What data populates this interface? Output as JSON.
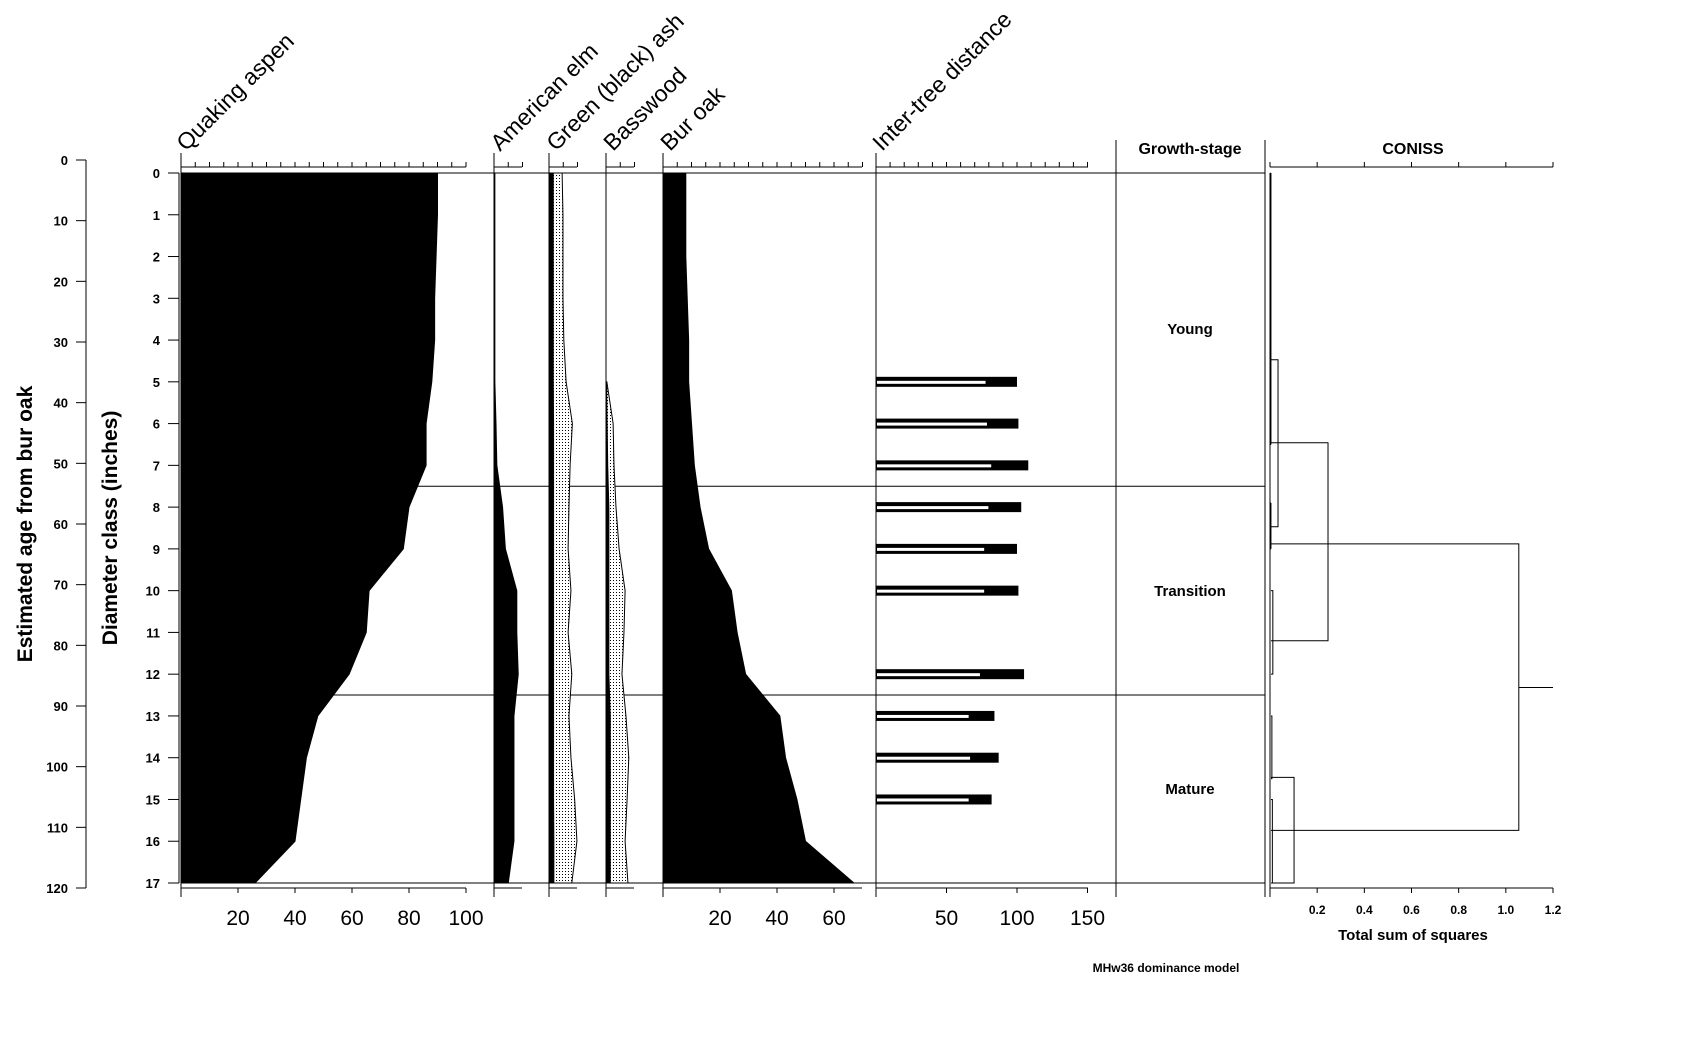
{
  "chart_data": {
    "type": "area",
    "y_axes": {
      "age": {
        "label": "Estimated age from bur oak",
        "ticks": [
          0,
          10,
          20,
          30,
          40,
          50,
          60,
          70,
          80,
          90,
          100,
          110,
          120
        ],
        "range": [
          0,
          120
        ]
      },
      "diameter": {
        "label": "Diameter class (inches)",
        "ticks": [
          0,
          1,
          2,
          3,
          4,
          5,
          6,
          7,
          8,
          9,
          10,
          11,
          12,
          13,
          14,
          15,
          16,
          17
        ],
        "range": [
          0,
          17
        ]
      }
    },
    "panels": [
      {
        "id": "aspen",
        "title": "Quaking aspen",
        "xlim": [
          0,
          100
        ],
        "bottom_ticks": [
          20,
          40,
          60,
          80,
          100
        ],
        "series": [
          {
            "style": "solid",
            "values": [
              90,
              90,
              89.5,
              89,
              89,
              88,
              86,
              86,
              80,
              78,
              66,
              65,
              59,
              48,
              44,
              42,
              40,
              26
            ]
          }
        ]
      },
      {
        "id": "elm",
        "title": "American elm",
        "xlim": [
          0,
          10
        ],
        "bottom_ticks": [],
        "series": [
          {
            "style": "solid",
            "values": [
              0.3,
              0.3,
              0.3,
              0.3,
              0.3,
              0.3,
              0.7,
              1,
              3,
              4,
              8,
              8,
              8.5,
              7,
              7,
              7,
              7,
              5
            ]
          }
        ]
      },
      {
        "id": "ash",
        "title": "Green (black) ash",
        "xlim": [
          0,
          10
        ],
        "bottom_ticks": [],
        "series": [
          {
            "style": "stipple",
            "values": [
              4.6,
              4.9,
              4.9,
              4.9,
              5.2,
              6,
              8.2,
              7.4,
              7,
              6.7,
              7.7,
              6.7,
              8,
              7,
              7.7,
              9,
              9.8,
              8
            ]
          },
          {
            "style": "solid",
            "values": [
              1.5,
              1.5,
              1.5,
              1.5,
              1.5,
              1.5,
              1.6,
              1.6,
              1.6,
              1.6,
              1.6,
              1.6,
              1.6,
              1.6,
              1.6,
              1.6,
              1.7,
              1.7
            ]
          }
        ]
      },
      {
        "id": "basswood",
        "title": "Basswood",
        "xlim": [
          0,
          10
        ],
        "bottom_ticks": [],
        "series": [
          {
            "style": "stipple",
            "values": [
              null,
              null,
              null,
              null,
              null,
              0.3,
              2.5,
              2.8,
              3.5,
              4.6,
              6.7,
              6.3,
              5.6,
              7,
              8,
              7.4,
              6.7,
              7.7
            ]
          },
          {
            "style": "solid",
            "values": [
              null,
              null,
              null,
              null,
              null,
              0.2,
              0.4,
              0.6,
              1,
              1,
              1,
              1,
              1,
              1.5,
              1.5,
              1.5,
              1.5,
              1.5
            ]
          }
        ]
      },
      {
        "id": "burOak",
        "title": "Bur oak",
        "xlim": [
          0,
          70
        ],
        "bottom_ticks": [
          20,
          40,
          60
        ],
        "series": [
          {
            "style": "solid",
            "values": [
              8,
              8,
              8,
              8.5,
              9,
              9,
              10,
              11,
              13,
              16,
              24,
              26,
              29,
              41,
              43,
              47,
              50,
              67
            ]
          }
        ]
      },
      {
        "id": "distance",
        "title": "Inter-tree distance",
        "type": "bar",
        "xlim": [
          0,
          150
        ],
        "bottom_ticks": [
          50,
          100,
          150
        ],
        "bars": [
          {
            "class": 5,
            "outer": 100,
            "inner": 77
          },
          {
            "class": 6,
            "outer": 101,
            "inner": 78
          },
          {
            "class": 7,
            "outer": 108,
            "inner": 81
          },
          {
            "class": 8,
            "outer": 103,
            "inner": 79
          },
          {
            "class": 9,
            "outer": 100,
            "inner": 76
          },
          {
            "class": 10,
            "outer": 101,
            "inner": 76
          },
          {
            "class": 12,
            "outer": 105,
            "inner": 73
          },
          {
            "class": 13,
            "outer": 84,
            "inner": 65
          },
          {
            "class": 14,
            "outer": 87,
            "inner": 66
          },
          {
            "class": 15,
            "outer": 82,
            "inner": 65
          }
        ]
      }
    ],
    "growth_stage": {
      "title": "Growth-stage",
      "zones": [
        {
          "label": "Young",
          "from": 0,
          "to": 7.5
        },
        {
          "label": "Transition",
          "from": 7.5,
          "to": 12.5
        },
        {
          "label": "Mature",
          "from": 12.5,
          "to": 17
        }
      ]
    },
    "coniss": {
      "title": "CONISS",
      "xlabel": "Total sum of squares",
      "xlim": [
        0,
        1.2
      ],
      "ticks": [
        "0.2",
        "0.4",
        "0.6",
        "0.8",
        "1.0",
        "1.2"
      ],
      "merges": [
        {
          "a": 0,
          "b": 6.5,
          "h": 0.004
        },
        {
          "a": 7.9,
          "b": 9.0,
          "h": 0.004
        },
        {
          "a": 4.47,
          "b": 8.47,
          "h": 0.034
        },
        {
          "a": 10.0,
          "b": 12.0,
          "h": 0.012
        },
        {
          "a": 6.46,
          "b": 11.2,
          "h": 0.246
        },
        {
          "a": 13.0,
          "b": 14.5,
          "h": 0.008
        },
        {
          "a": 15.0,
          "b": 17.0,
          "h": 0.01
        },
        {
          "a": 14.47,
          "b": 17.0,
          "h": 0.102
        },
        {
          "a": 8.88,
          "b": 15.74,
          "h": 1.055
        }
      ],
      "root": {
        "y": 12.32,
        "to": 1.2
      }
    },
    "footer": "MHw36 dominance model"
  }
}
